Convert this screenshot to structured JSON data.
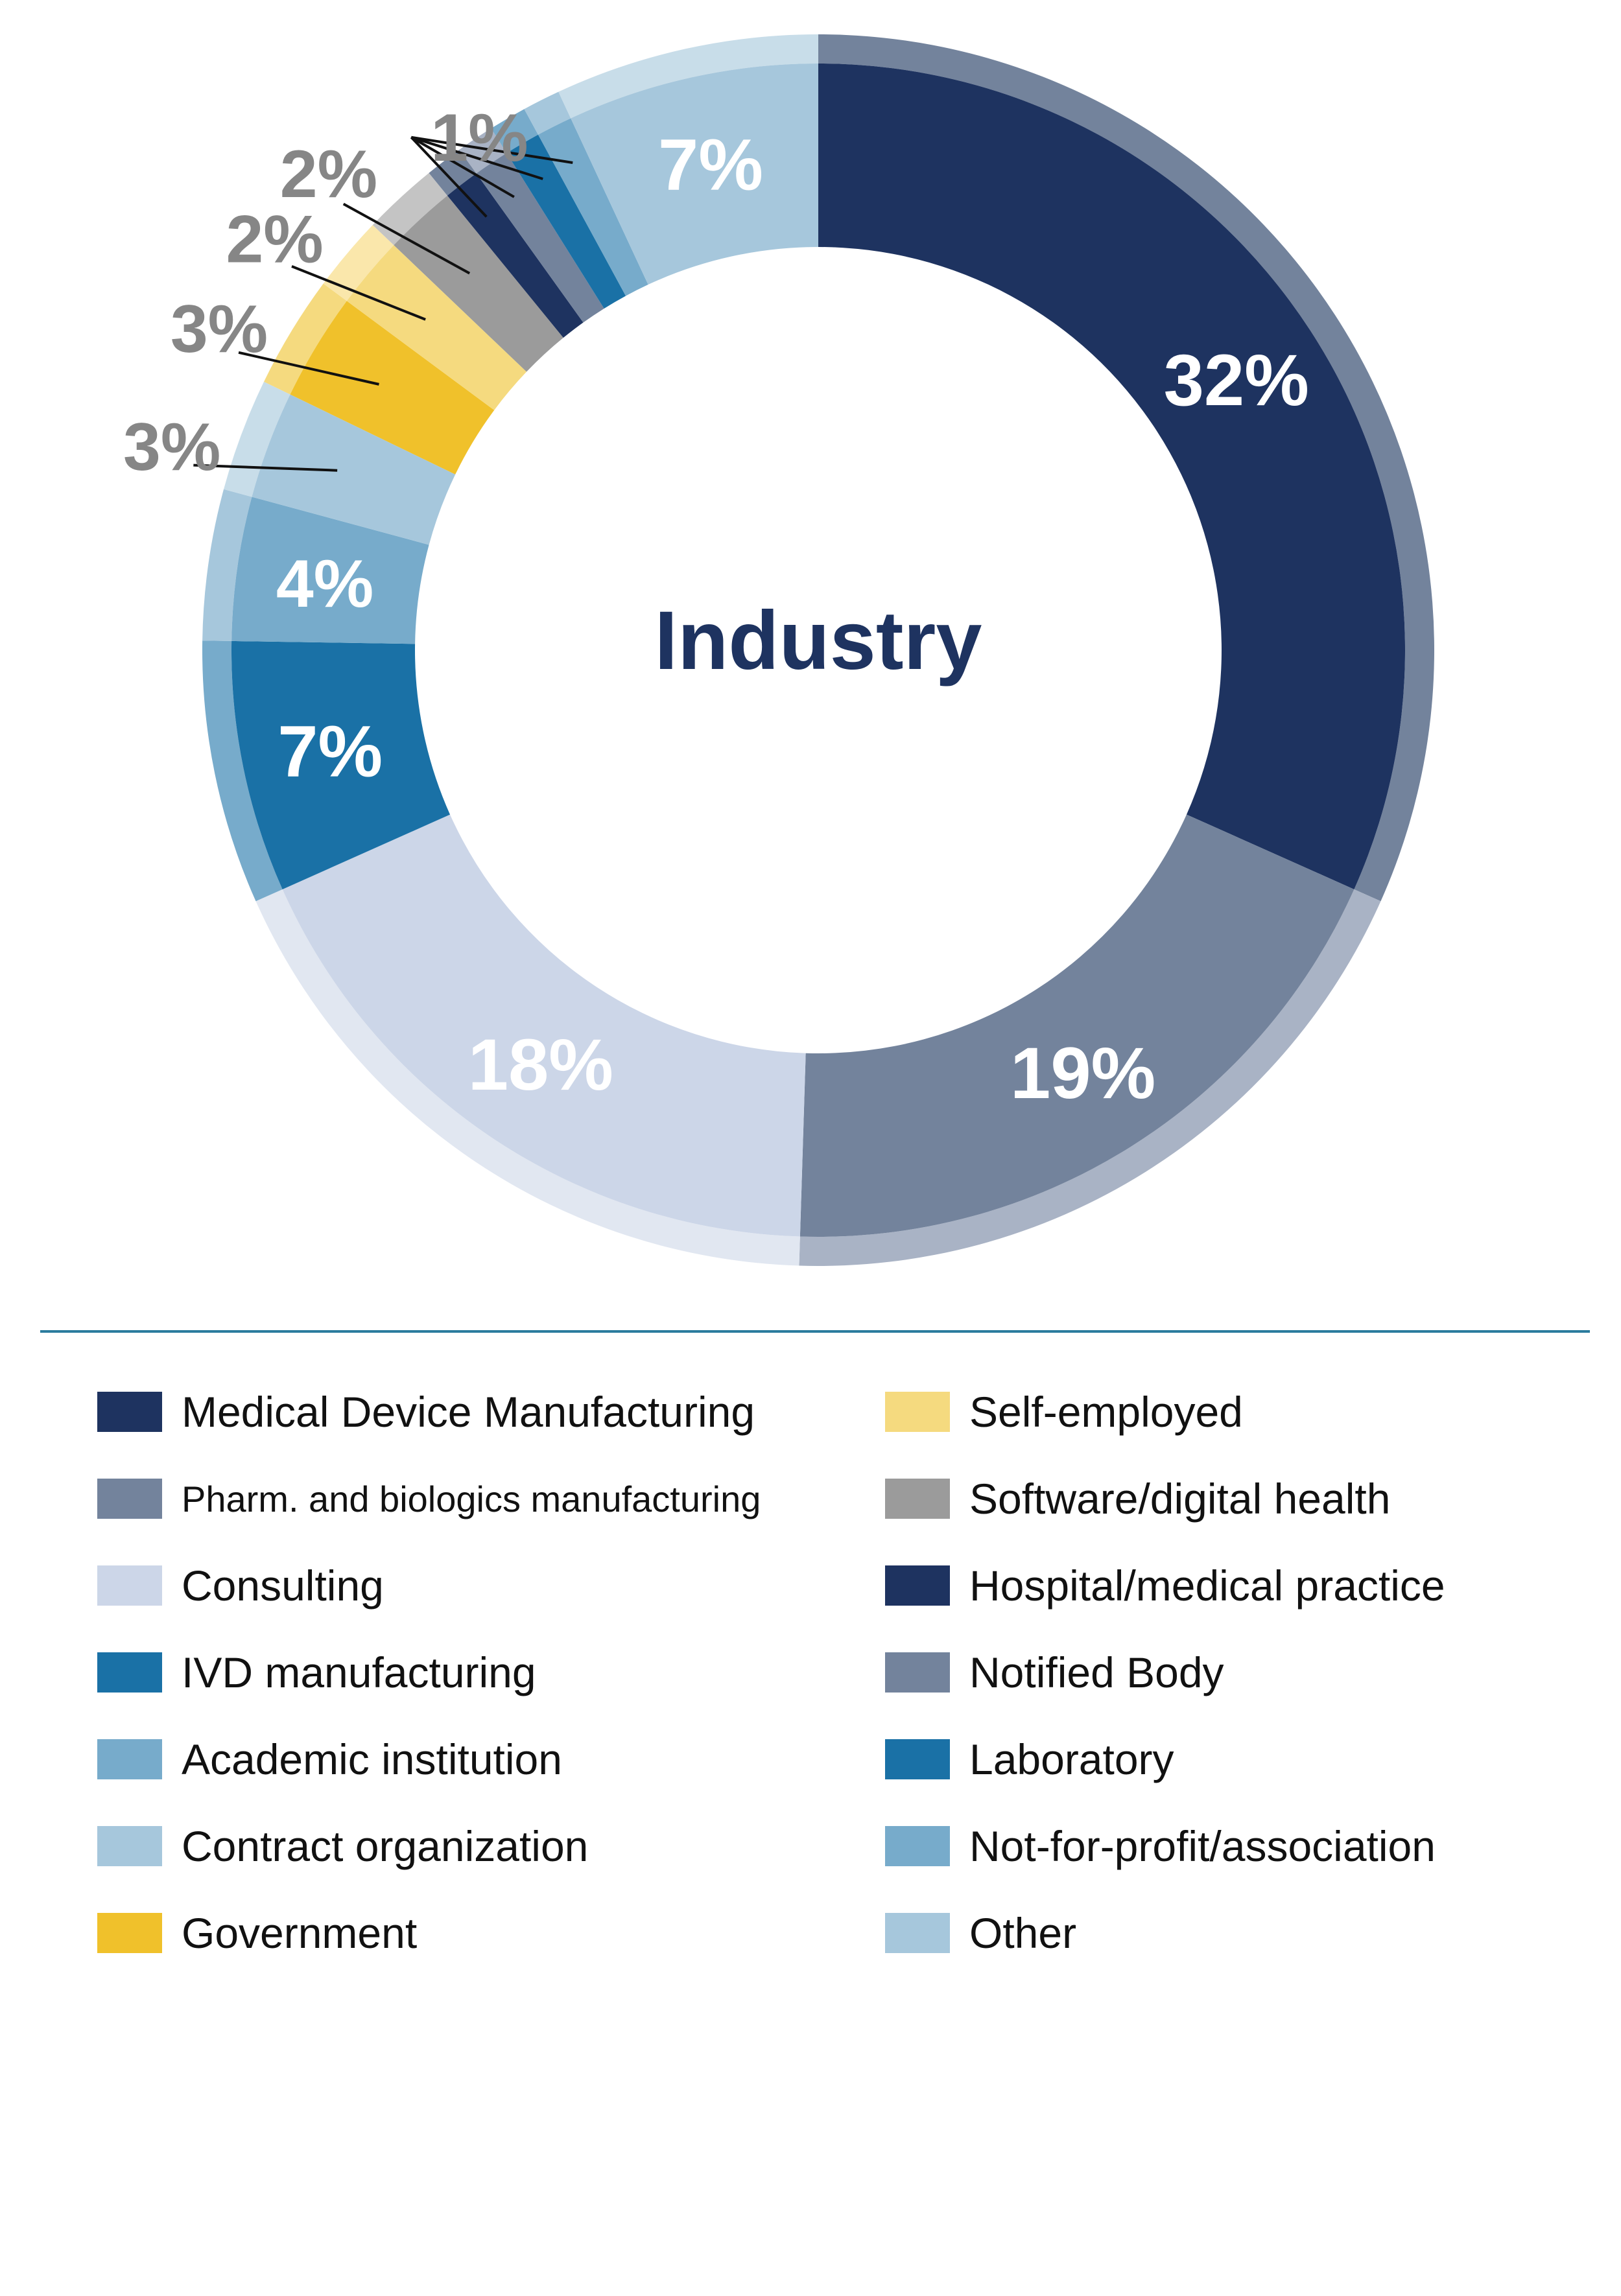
{
  "chart_data": {
    "type": "pie",
    "title": "Industry",
    "categories": [
      "Medical Device Manufacturing",
      "Pharm. and biologics manufacturing",
      "Consulting",
      "IVD manufacturing",
      "Academic institution",
      "Contract organization",
      "Government",
      "Self-employed",
      "Software/digital health",
      "Hospital/medical practice",
      "Notified Body",
      "Laboratory",
      "Not-for-profit/association",
      "Other"
    ],
    "values": [
      32,
      19,
      18,
      7,
      4,
      3,
      3,
      2,
      2,
      1,
      1,
      1,
      1,
      7
    ],
    "labels": [
      "32%",
      "19%",
      "18%",
      "7%",
      "4%",
      "3%",
      "3%",
      "2%",
      "2%",
      "",
      "",
      "",
      "",
      "7%"
    ],
    "shared_label": "1%",
    "colors": [
      "#1e3360",
      "#73839c",
      "#ccd6e8",
      "#1a71a6",
      "#77abcb",
      "#a6c7dc",
      "#f0c12b",
      "#f5da7f",
      "#9b9b9b",
      "#1e3360",
      "#73839c",
      "#1a71a6",
      "#77abcb",
      "#a6c7dc"
    ],
    "outer_colors": [
      "#73839c",
      "#a9b3c5",
      "#e1e7f1",
      "#77abcb",
      "#a6c7dc",
      "#c8dde9",
      "#f5da7f",
      "#fae7ab",
      "#c4c4c4",
      "#73839c",
      "#a9b3c5",
      "#77abcb",
      "#a6c7dc",
      "#c8dde9"
    ],
    "label_colors": [
      "#ffffff",
      "#ffffff",
      "#ffffff",
      "#ffffff",
      "#ffffff",
      "#868686",
      "#868686",
      "#868686",
      "#868686",
      "",
      "",
      "",
      "",
      "#ffffff"
    ],
    "start_angle_deg": 90,
    "direction": "clockwise"
  },
  "legend": {
    "left": [
      {
        "label": "Medical Device Manufacturing",
        "color": "#1e3360"
      },
      {
        "label": "Pharm. and biologics manufacturing",
        "color": "#73839c"
      },
      {
        "label": "Consulting",
        "color": "#ccd6e8"
      },
      {
        "label": "IVD manufacturing",
        "color": "#1a71a6"
      },
      {
        "label": "Academic institution",
        "color": "#77abcb"
      },
      {
        "label": "Contract organization",
        "color": "#a6c7dc"
      },
      {
        "label": "Government",
        "color": "#f0c12b"
      }
    ],
    "right": [
      {
        "label": "Self-employed",
        "color": "#f5da7f"
      },
      {
        "label": "Software/digital health",
        "color": "#9b9b9b"
      },
      {
        "label": "Hospital/medical practice",
        "color": "#1e3360"
      },
      {
        "label": "Notified Body",
        "color": "#73839c"
      },
      {
        "label": "Laboratory",
        "color": "#1a71a6"
      },
      {
        "label": "Not-for-profit/association",
        "color": "#77abcb"
      },
      {
        "label": "Other",
        "color": "#a6c7dc"
      }
    ]
  }
}
